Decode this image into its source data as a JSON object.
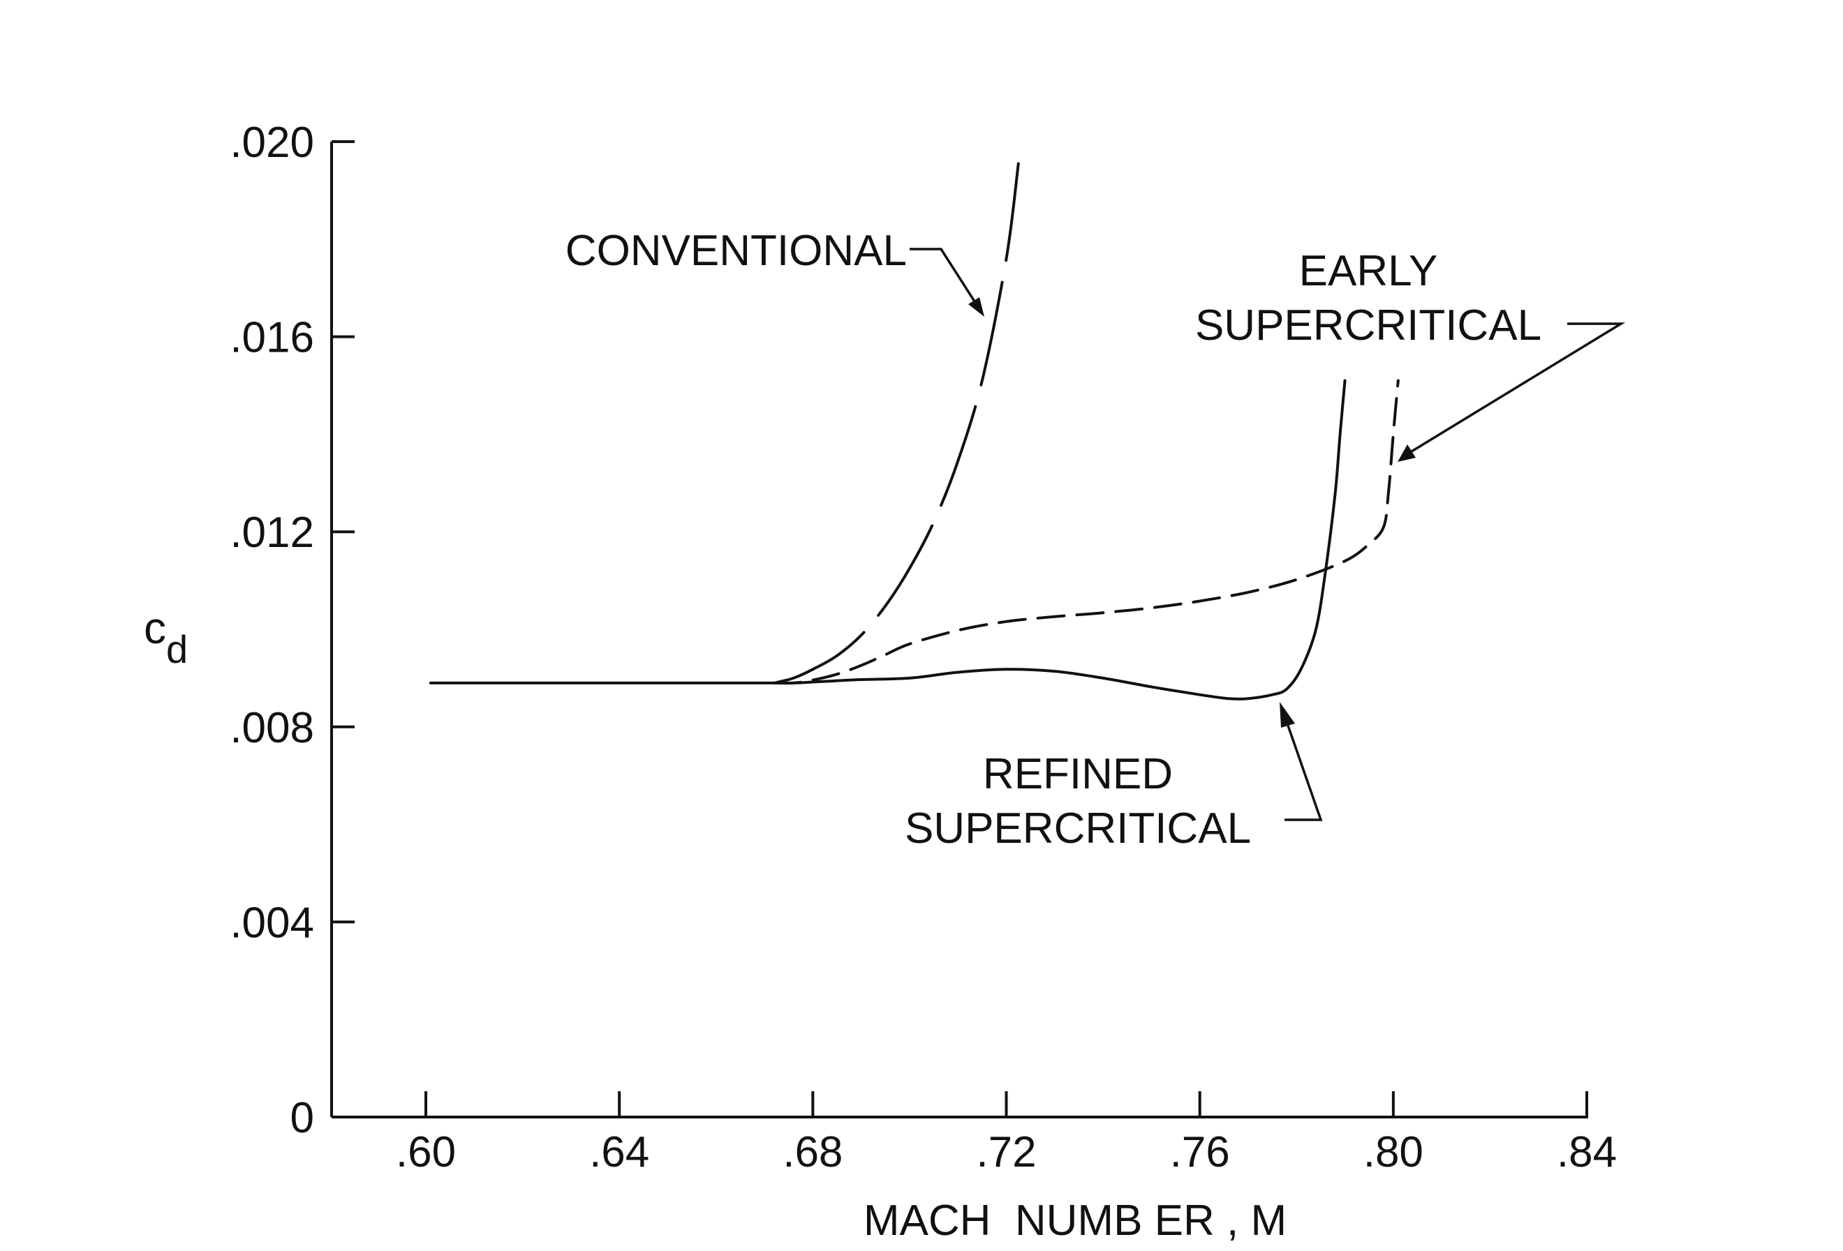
{
  "chart_data": {
    "type": "line",
    "xlabel": "MACH  NUMB ER , M",
    "ylabel": "c",
    "ylabel_subscript": "d",
    "xlim": [
      0.6,
      0.84
    ],
    "ylim": [
      0,
      0.02
    ],
    "x_ticks": [
      0.6,
      0.64,
      0.68,
      0.72,
      0.76,
      0.8,
      0.84
    ],
    "x_tick_labels": [
      ".60",
      ".64",
      ".68",
      ".72",
      ".76",
      ".80",
      ".84"
    ],
    "y_ticks": [
      0,
      0.004,
      0.008,
      0.012,
      0.016,
      0.02
    ],
    "y_tick_labels": [
      "0",
      ".004",
      ".008",
      ".012",
      ".016",
      ".020"
    ],
    "grid": false,
    "series": [
      {
        "style": "solid",
        "x": [
          0.601,
          0.62,
          0.64,
          0.66,
          0.672,
          0.676,
          0.68,
          0.684,
          0.69,
          0.7,
          0.71,
          0.72,
          0.73,
          0.74,
          0.75,
          0.76,
          0.766,
          0.77,
          0.775,
          0.778,
          0.781,
          0.784,
          0.786,
          0.788,
          0.789,
          0.79
        ],
        "y": [
          0.0089,
          0.0089,
          0.0089,
          0.0089,
          0.0089,
          0.0089,
          0.00892,
          0.00894,
          0.00897,
          0.009,
          0.00912,
          0.00918,
          0.00914,
          0.009,
          0.00882,
          0.00866,
          0.00858,
          0.00858,
          0.00866,
          0.00878,
          0.0092,
          0.01,
          0.0112,
          0.0128,
          0.014,
          0.0151
        ]
      },
      {
        "style": "dashed",
        "x": [
          0.672,
          0.676,
          0.68,
          0.685,
          0.69,
          0.695,
          0.7,
          0.71,
          0.72,
          0.73,
          0.74,
          0.75,
          0.76,
          0.77,
          0.78,
          0.79,
          0.795,
          0.798,
          0.799,
          0.8,
          0.801
        ],
        "y": [
          0.0089,
          0.0089,
          0.00896,
          0.00908,
          0.00926,
          0.00948,
          0.0097,
          0.00998,
          0.01016,
          0.01026,
          0.01034,
          0.01044,
          0.01058,
          0.01076,
          0.01102,
          0.0114,
          0.01175,
          0.0121,
          0.0128,
          0.014,
          0.0151
        ]
      },
      {
        "style": "long-dash",
        "x": [
          0.672,
          0.676,
          0.68,
          0.685,
          0.69,
          0.695,
          0.7,
          0.705,
          0.71,
          0.715,
          0.72,
          0.7225
        ],
        "y": [
          0.0089,
          0.009,
          0.00918,
          0.00946,
          0.00988,
          0.01048,
          0.01125,
          0.0122,
          0.01345,
          0.0151,
          0.0176,
          0.01955
        ]
      }
    ],
    "annotations": [
      {
        "text": "CONVENTIONAL"
      },
      {
        "text": [
          "EARLY",
          "SUPERCRITICAL"
        ]
      },
      {
        "text": [
          "REFINED",
          "SUPERCRITICAL"
        ]
      }
    ]
  }
}
